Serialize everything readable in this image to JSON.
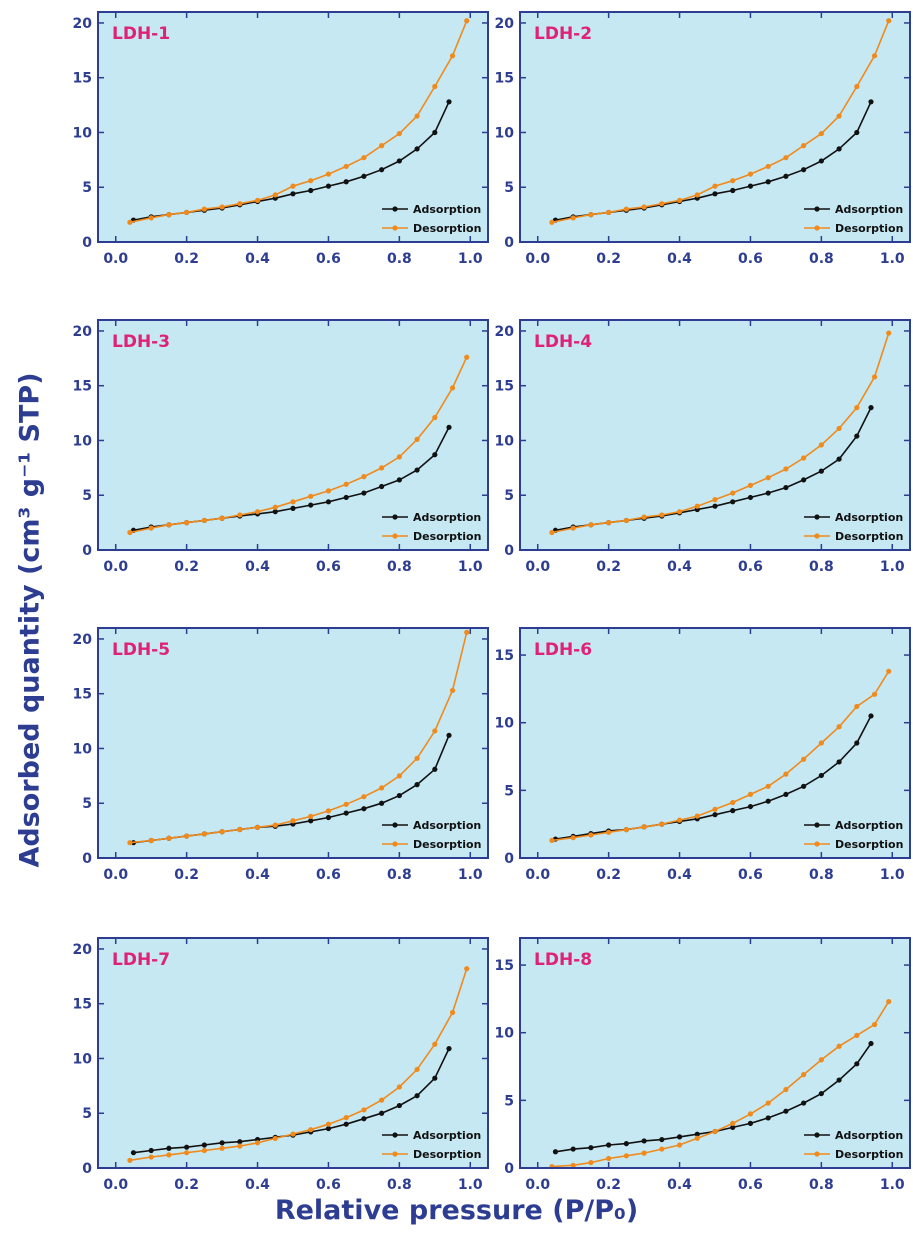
{
  "figure": {
    "ylabel": "Adsorbed quantity (cm³ g⁻¹ STP)",
    "xlabel": "Relative pressure (P/P₀)"
  },
  "colors": {
    "plot_bg": "#c5e8f3",
    "frame": "#2d3d91",
    "title": "#e0217a",
    "adsorption": "#111111",
    "desorption": "#f08a1c",
    "axis_text": "#2d3d91"
  },
  "chart_data": [
    {
      "type": "line",
      "title": "LDH-1",
      "xlim": [
        -0.05,
        1.05
      ],
      "ylim": [
        0,
        21
      ],
      "xticks": [
        "0.0",
        "0.2",
        "0.4",
        "0.6",
        "0.8",
        "1.0"
      ],
      "yticks": [
        "0",
        "5",
        "10",
        "15",
        "20"
      ],
      "legend": "bottom-right",
      "series": [
        {
          "name": "Adsorption",
          "x": [
            0.05,
            0.1,
            0.15,
            0.2,
            0.25,
            0.3,
            0.35,
            0.4,
            0.45,
            0.5,
            0.55,
            0.6,
            0.65,
            0.7,
            0.75,
            0.8,
            0.85,
            0.9,
            0.94
          ],
          "y": [
            2.0,
            2.3,
            2.5,
            2.7,
            2.9,
            3.1,
            3.4,
            3.7,
            4.0,
            4.4,
            4.7,
            5.1,
            5.5,
            6.0,
            6.6,
            7.4,
            8.5,
            10.0,
            12.8
          ]
        },
        {
          "name": "Desorption",
          "x": [
            0.04,
            0.1,
            0.15,
            0.2,
            0.25,
            0.3,
            0.35,
            0.4,
            0.45,
            0.5,
            0.55,
            0.6,
            0.65,
            0.7,
            0.75,
            0.8,
            0.85,
            0.9,
            0.95,
            0.99
          ],
          "y": [
            1.8,
            2.2,
            2.5,
            2.7,
            3.0,
            3.2,
            3.5,
            3.8,
            4.3,
            5.1,
            5.6,
            6.2,
            6.9,
            7.7,
            8.8,
            9.9,
            11.5,
            14.2,
            17.0,
            20.2
          ]
        }
      ]
    },
    {
      "type": "line",
      "title": "LDH-2",
      "xlim": [
        -0.05,
        1.05
      ],
      "ylim": [
        0,
        21
      ],
      "xticks": [
        "0.0",
        "0.2",
        "0.4",
        "0.6",
        "0.8",
        "1.0"
      ],
      "yticks": [
        "0",
        "5",
        "10",
        "15",
        "20"
      ],
      "legend": "bottom-right",
      "series": [
        {
          "name": "Adsorption",
          "x": [
            0.05,
            0.1,
            0.15,
            0.2,
            0.25,
            0.3,
            0.35,
            0.4,
            0.45,
            0.5,
            0.55,
            0.6,
            0.65,
            0.7,
            0.75,
            0.8,
            0.85,
            0.9,
            0.94
          ],
          "y": [
            2.0,
            2.3,
            2.5,
            2.7,
            2.9,
            3.1,
            3.4,
            3.7,
            4.0,
            4.4,
            4.7,
            5.1,
            5.5,
            6.0,
            6.6,
            7.4,
            8.5,
            10.0,
            12.8
          ]
        },
        {
          "name": "Desorption",
          "x": [
            0.04,
            0.1,
            0.15,
            0.2,
            0.25,
            0.3,
            0.35,
            0.4,
            0.45,
            0.5,
            0.55,
            0.6,
            0.65,
            0.7,
            0.75,
            0.8,
            0.85,
            0.9,
            0.95,
            0.99
          ],
          "y": [
            1.8,
            2.2,
            2.5,
            2.7,
            3.0,
            3.2,
            3.5,
            3.8,
            4.3,
            5.1,
            5.6,
            6.2,
            6.9,
            7.7,
            8.8,
            9.9,
            11.5,
            14.2,
            17.0,
            20.2
          ]
        }
      ]
    },
    {
      "type": "line",
      "title": "LDH-3",
      "xlim": [
        -0.05,
        1.05
      ],
      "ylim": [
        0,
        21
      ],
      "xticks": [
        "0.0",
        "0.2",
        "0.4",
        "0.6",
        "0.8",
        "1.0"
      ],
      "yticks": [
        "0",
        "5",
        "10",
        "15",
        "20"
      ],
      "legend": "bottom-right",
      "series": [
        {
          "name": "Adsorption",
          "x": [
            0.05,
            0.1,
            0.15,
            0.2,
            0.25,
            0.3,
            0.35,
            0.4,
            0.45,
            0.5,
            0.55,
            0.6,
            0.65,
            0.7,
            0.75,
            0.8,
            0.85,
            0.9,
            0.94
          ],
          "y": [
            1.8,
            2.1,
            2.3,
            2.5,
            2.7,
            2.9,
            3.1,
            3.3,
            3.5,
            3.8,
            4.1,
            4.4,
            4.8,
            5.2,
            5.8,
            6.4,
            7.3,
            8.7,
            11.2
          ]
        },
        {
          "name": "Desorption",
          "x": [
            0.04,
            0.1,
            0.15,
            0.2,
            0.25,
            0.3,
            0.35,
            0.4,
            0.45,
            0.5,
            0.55,
            0.6,
            0.65,
            0.7,
            0.75,
            0.8,
            0.85,
            0.9,
            0.95,
            0.99
          ],
          "y": [
            1.6,
            2.0,
            2.3,
            2.5,
            2.7,
            2.9,
            3.2,
            3.5,
            3.9,
            4.4,
            4.9,
            5.4,
            6.0,
            6.7,
            7.5,
            8.5,
            10.1,
            12.1,
            14.8,
            17.6
          ]
        }
      ]
    },
    {
      "type": "line",
      "title": "LDH-4",
      "xlim": [
        -0.05,
        1.05
      ],
      "ylim": [
        0,
        21
      ],
      "xticks": [
        "0.0",
        "0.2",
        "0.4",
        "0.6",
        "0.8",
        "1.0"
      ],
      "yticks": [
        "0",
        "5",
        "10",
        "15",
        "20"
      ],
      "legend": "bottom-right",
      "series": [
        {
          "name": "Adsorption",
          "x": [
            0.05,
            0.1,
            0.15,
            0.2,
            0.25,
            0.3,
            0.35,
            0.4,
            0.45,
            0.5,
            0.55,
            0.6,
            0.65,
            0.7,
            0.75,
            0.8,
            0.85,
            0.9,
            0.94
          ],
          "y": [
            1.8,
            2.1,
            2.3,
            2.5,
            2.7,
            2.9,
            3.1,
            3.4,
            3.7,
            4.0,
            4.4,
            4.8,
            5.2,
            5.7,
            6.4,
            7.2,
            8.3,
            10.4,
            13.0
          ]
        },
        {
          "name": "Desorption",
          "x": [
            0.04,
            0.1,
            0.15,
            0.2,
            0.25,
            0.3,
            0.35,
            0.4,
            0.45,
            0.5,
            0.55,
            0.6,
            0.65,
            0.7,
            0.75,
            0.8,
            0.85,
            0.9,
            0.95,
            0.99
          ],
          "y": [
            1.6,
            2.0,
            2.3,
            2.5,
            2.7,
            3.0,
            3.2,
            3.5,
            4.0,
            4.6,
            5.2,
            5.9,
            6.6,
            7.4,
            8.4,
            9.6,
            11.1,
            13.0,
            15.8,
            19.8
          ]
        }
      ]
    },
    {
      "type": "line",
      "title": "LDH-5",
      "xlim": [
        -0.05,
        1.05
      ],
      "ylim": [
        0,
        21
      ],
      "xticks": [
        "0.0",
        "0.2",
        "0.4",
        "0.6",
        "0.8",
        "1.0"
      ],
      "yticks": [
        "0",
        "5",
        "10",
        "15",
        "20"
      ],
      "legend": "bottom-right",
      "series": [
        {
          "name": "Adsorption",
          "x": [
            0.05,
            0.1,
            0.15,
            0.2,
            0.25,
            0.3,
            0.35,
            0.4,
            0.45,
            0.5,
            0.55,
            0.6,
            0.65,
            0.7,
            0.75,
            0.8,
            0.85,
            0.9,
            0.94
          ],
          "y": [
            1.4,
            1.6,
            1.8,
            2.0,
            2.2,
            2.4,
            2.6,
            2.8,
            2.9,
            3.1,
            3.4,
            3.7,
            4.1,
            4.5,
            5.0,
            5.7,
            6.7,
            8.1,
            11.2
          ]
        },
        {
          "name": "Desorption",
          "x": [
            0.04,
            0.1,
            0.15,
            0.2,
            0.25,
            0.3,
            0.35,
            0.4,
            0.45,
            0.5,
            0.55,
            0.6,
            0.65,
            0.7,
            0.75,
            0.8,
            0.85,
            0.9,
            0.95,
            0.99
          ],
          "y": [
            1.4,
            1.6,
            1.8,
            2.0,
            2.2,
            2.4,
            2.6,
            2.8,
            3.0,
            3.4,
            3.8,
            4.3,
            4.9,
            5.6,
            6.4,
            7.5,
            9.1,
            11.6,
            15.3,
            20.6
          ]
        }
      ]
    },
    {
      "type": "line",
      "title": "LDH-6",
      "xlim": [
        -0.05,
        1.05
      ],
      "ylim": [
        0,
        17
      ],
      "xticks": [
        "0.0",
        "0.2",
        "0.4",
        "0.6",
        "0.8",
        "1.0"
      ],
      "yticks": [
        "0",
        "5",
        "10",
        "15"
      ],
      "legend": "bottom-right",
      "series": [
        {
          "name": "Adsorption",
          "x": [
            0.05,
            0.1,
            0.15,
            0.2,
            0.25,
            0.3,
            0.35,
            0.4,
            0.45,
            0.5,
            0.55,
            0.6,
            0.65,
            0.7,
            0.75,
            0.8,
            0.85,
            0.9,
            0.94
          ],
          "y": [
            1.4,
            1.6,
            1.8,
            2.0,
            2.1,
            2.3,
            2.5,
            2.7,
            2.9,
            3.2,
            3.5,
            3.8,
            4.2,
            4.7,
            5.3,
            6.1,
            7.1,
            8.5,
            10.5
          ]
        },
        {
          "name": "Desorption",
          "x": [
            0.04,
            0.1,
            0.15,
            0.2,
            0.25,
            0.3,
            0.35,
            0.4,
            0.45,
            0.5,
            0.55,
            0.6,
            0.65,
            0.7,
            0.75,
            0.8,
            0.85,
            0.9,
            0.95,
            0.99
          ],
          "y": [
            1.3,
            1.5,
            1.7,
            1.9,
            2.1,
            2.3,
            2.5,
            2.8,
            3.1,
            3.6,
            4.1,
            4.7,
            5.3,
            6.2,
            7.3,
            8.5,
            9.7,
            11.2,
            12.1,
            13.8
          ]
        }
      ]
    },
    {
      "type": "line",
      "title": "LDH-7",
      "xlim": [
        -0.05,
        1.05
      ],
      "ylim": [
        0,
        21
      ],
      "xticks": [
        "0.0",
        "0.2",
        "0.4",
        "0.6",
        "0.8",
        "1.0"
      ],
      "yticks": [
        "0",
        "5",
        "10",
        "15",
        "20"
      ],
      "legend": "bottom-right",
      "series": [
        {
          "name": "Adsorption",
          "x": [
            0.05,
            0.1,
            0.15,
            0.2,
            0.25,
            0.3,
            0.35,
            0.4,
            0.45,
            0.5,
            0.55,
            0.6,
            0.65,
            0.7,
            0.75,
            0.8,
            0.85,
            0.9,
            0.94
          ],
          "y": [
            1.4,
            1.6,
            1.8,
            1.9,
            2.1,
            2.3,
            2.4,
            2.6,
            2.8,
            3.0,
            3.3,
            3.6,
            4.0,
            4.5,
            5.0,
            5.7,
            6.6,
            8.2,
            10.9
          ]
        },
        {
          "name": "Desorption",
          "x": [
            0.04,
            0.1,
            0.15,
            0.2,
            0.25,
            0.3,
            0.35,
            0.4,
            0.45,
            0.5,
            0.55,
            0.6,
            0.65,
            0.7,
            0.75,
            0.8,
            0.85,
            0.9,
            0.95,
            0.99
          ],
          "y": [
            0.7,
            1.0,
            1.2,
            1.4,
            1.6,
            1.8,
            2.0,
            2.3,
            2.7,
            3.1,
            3.5,
            4.0,
            4.6,
            5.3,
            6.2,
            7.4,
            9.0,
            11.3,
            14.2,
            18.2
          ]
        }
      ]
    },
    {
      "type": "line",
      "title": "LDH-8",
      "xlim": [
        -0.05,
        1.05
      ],
      "ylim": [
        0,
        17
      ],
      "xticks": [
        "0.0",
        "0.2",
        "0.4",
        "0.6",
        "0.8",
        "1.0"
      ],
      "yticks": [
        "0",
        "5",
        "10",
        "15"
      ],
      "legend": "bottom-right",
      "series": [
        {
          "name": "Adsorption",
          "x": [
            0.05,
            0.1,
            0.15,
            0.2,
            0.25,
            0.3,
            0.35,
            0.4,
            0.45,
            0.5,
            0.55,
            0.6,
            0.65,
            0.7,
            0.75,
            0.8,
            0.85,
            0.9,
            0.94
          ],
          "y": [
            1.2,
            1.4,
            1.5,
            1.7,
            1.8,
            2.0,
            2.1,
            2.3,
            2.5,
            2.7,
            3.0,
            3.3,
            3.7,
            4.2,
            4.8,
            5.5,
            6.5,
            7.7,
            9.2
          ]
        },
        {
          "name": "Desorption",
          "x": [
            0.04,
            0.1,
            0.15,
            0.2,
            0.25,
            0.3,
            0.35,
            0.4,
            0.45,
            0.5,
            0.55,
            0.6,
            0.65,
            0.7,
            0.75,
            0.8,
            0.85,
            0.9,
            0.95,
            0.99
          ],
          "y": [
            0.1,
            0.2,
            0.4,
            0.7,
            0.9,
            1.1,
            1.4,
            1.7,
            2.2,
            2.7,
            3.3,
            4.0,
            4.8,
            5.8,
            6.9,
            8.0,
            9.0,
            9.8,
            10.6,
            12.3
          ]
        }
      ]
    }
  ]
}
